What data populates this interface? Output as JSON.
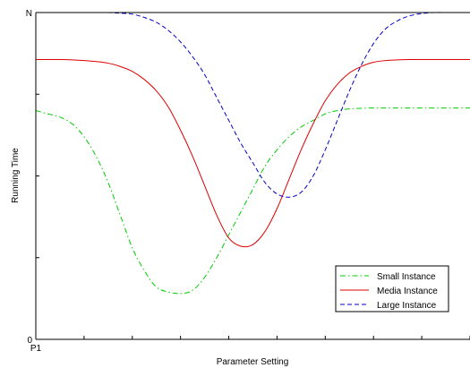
{
  "chart_data": {
    "type": "line",
    "xlabel": "Parameter Setting",
    "ylabel": "Running Time",
    "x_tick_labels": [
      "P1"
    ],
    "y_tick_labels": [
      "0",
      "N"
    ],
    "xlim": [
      0,
      9
    ],
    "ylim": [
      0,
      1
    ],
    "grid": false,
    "legend_position": "bottom-right",
    "x": [
      0,
      0.25,
      0.5,
      0.75,
      1,
      1.25,
      1.5,
      1.75,
      2,
      2.25,
      2.5,
      2.75,
      3,
      3.25,
      3.5,
      3.75,
      4,
      4.25,
      4.5,
      4.75,
      5,
      5.25,
      5.5,
      5.75,
      6,
      6.25,
      6.5,
      6.75,
      7,
      7.25,
      7.5,
      7.75,
      8,
      8.25,
      8.5,
      8.75,
      9
    ],
    "series": [
      {
        "name": "Small Instance",
        "color": "#00cc00",
        "dash": "dash-dot",
        "values": [
          0.7,
          0.69,
          0.68,
          0.66,
          0.62,
          0.56,
          0.48,
          0.38,
          0.28,
          0.21,
          0.16,
          0.145,
          0.14,
          0.15,
          0.19,
          0.25,
          0.32,
          0.39,
          0.46,
          0.53,
          0.58,
          0.62,
          0.65,
          0.67,
          0.69,
          0.7,
          0.705,
          0.707,
          0.708,
          0.708,
          0.708,
          0.708,
          0.708,
          0.708,
          0.708,
          0.708,
          0.708
        ]
      },
      {
        "name": "Media Instance",
        "color": "#dd0000",
        "dash": "solid",
        "values": [
          0.856,
          0.856,
          0.856,
          0.855,
          0.853,
          0.85,
          0.845,
          0.835,
          0.82,
          0.795,
          0.76,
          0.71,
          0.64,
          0.56,
          0.47,
          0.38,
          0.31,
          0.285,
          0.29,
          0.33,
          0.4,
          0.49,
          0.58,
          0.66,
          0.73,
          0.78,
          0.815,
          0.835,
          0.848,
          0.853,
          0.855,
          0.856,
          0.856,
          0.856,
          0.856,
          0.856,
          0.856
        ]
      },
      {
        "name": "Large Instance",
        "color": "#0000cc",
        "dash": "dashed",
        "values": [
          1.0,
          1.0,
          1.0,
          1.0,
          1.0,
          1.0,
          1.0,
          0.998,
          0.995,
          0.985,
          0.97,
          0.945,
          0.91,
          0.865,
          0.81,
          0.74,
          0.67,
          0.6,
          0.54,
          0.48,
          0.445,
          0.435,
          0.45,
          0.5,
          0.58,
          0.67,
          0.76,
          0.84,
          0.905,
          0.95,
          0.975,
          0.99,
          0.997,
          1.0,
          1.0,
          1.0,
          1.0
        ]
      }
    ]
  }
}
